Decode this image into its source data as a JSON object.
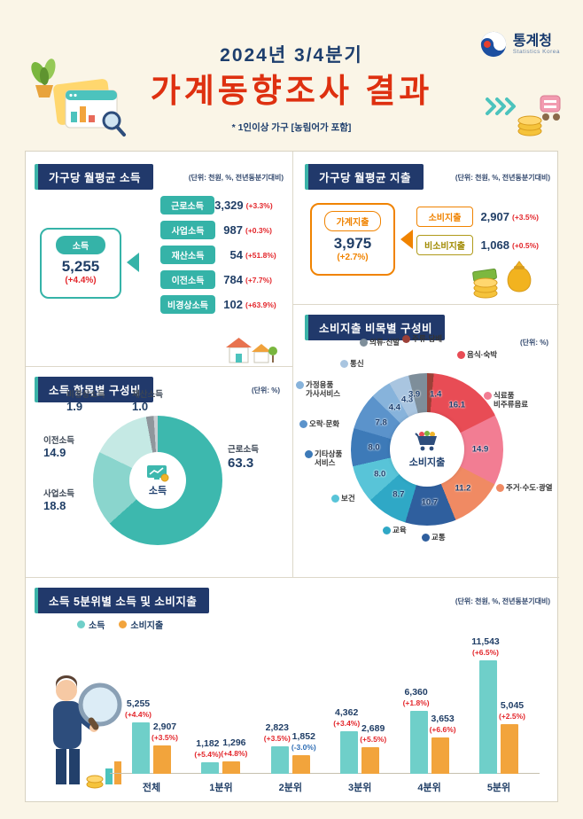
{
  "palette": {
    "navy": "#1d3e6d",
    "teal": "#35b3a8",
    "orange": "#f08300",
    "olive": "#b09a1a",
    "positive_red": "#e3262b",
    "negative_blue": "#2e6db4",
    "title_red": "#de3010",
    "background": "#faf5e7"
  },
  "logo": {
    "name": "통계청",
    "subname": "Statistics Korea"
  },
  "header": {
    "period": "2024년 3/4분기",
    "title": "가계동향조사 결과",
    "note": "* 1인이상 가구 [농림어가 포함]"
  },
  "income_section": {
    "title": "가구당 월평균 소득",
    "unit": "(단위: 천원, %, 전년동분기대비)",
    "total": {
      "label": "소득",
      "value": "5,255",
      "change": "(+4.4%)"
    },
    "rows": [
      {
        "label": "근로소득",
        "value": "3,329",
        "change": "(+3.3%)"
      },
      {
        "label": "사업소득",
        "value": "987",
        "change": "(+0.3%)"
      },
      {
        "label": "재산소득",
        "value": "54",
        "change": "(+51.8%)"
      },
      {
        "label": "이전소득",
        "value": "784",
        "change": "(+7.7%)"
      },
      {
        "label": "비경상소득",
        "value": "102",
        "change": "(+63.9%)"
      }
    ]
  },
  "expenditure_section": {
    "title": "가구당 월평균 지출",
    "unit": "(단위: 천원, %, 전년동분기대비)",
    "total": {
      "label": "가계지출",
      "value": "3,975",
      "change": "(+2.7%)"
    },
    "rows": [
      {
        "label": "소비지출",
        "value": "2,907",
        "change": "(+3.5%)"
      },
      {
        "label": "비소비지출",
        "value": "1,068",
        "change": "(+0.5%)"
      }
    ]
  },
  "income_composition": {
    "title": "소득 항목별 구성비",
    "unit": "(단위: %)",
    "center_label": "소득"
  },
  "consumption_composition": {
    "title": "소비지출 비목별 구성비",
    "unit": "(단위: %)",
    "center_label": "소비지출"
  },
  "quintile_section": {
    "title": "소득 5분위별 소득 및 소비지출",
    "unit": "(단위: 천원, %, 전년동분기대비)"
  },
  "chart_data": [
    {
      "type": "pie",
      "variant": "donut",
      "title": "소득 항목별 구성비",
      "unit": "%",
      "center_label": "소득",
      "items": [
        {
          "label": "근로소득",
          "value": 63.3,
          "display": "63.3",
          "color": "#3db8ae"
        },
        {
          "label": "사업소득",
          "value": 18.8,
          "display": "18.8",
          "color": "#8ad5cd"
        },
        {
          "label": "이전소득",
          "value": 14.9,
          "display": "14.9",
          "color": "#c5e9e4"
        },
        {
          "label": "비경상소득",
          "value": 1.9,
          "display": "1.9",
          "color": "#8f969c"
        },
        {
          "label": "재산소득",
          "value": 1.0,
          "display": "1.0",
          "color": "#c9ced3"
        }
      ]
    },
    {
      "type": "pie",
      "variant": "donut",
      "title": "소비지출 비목별 구성비",
      "unit": "%",
      "center_label": "소비지출",
      "items": [
        {
          "label": "주류·담배",
          "value": 1.4,
          "display": "1.4",
          "color": "#9c4038"
        },
        {
          "label": "음식·숙박",
          "value": 16.1,
          "display": "16.1",
          "color": "#e84c55"
        },
        {
          "label": "식료품\n비주류음료",
          "value": 14.9,
          "display": "14.9",
          "color": "#f27d93"
        },
        {
          "label": "주거·수도·광열",
          "value": 11.2,
          "display": "11.2",
          "color": "#f08a63"
        },
        {
          "label": "교통",
          "value": 10.7,
          "display": "10.7",
          "color": "#2f5f9e"
        },
        {
          "label": "교육",
          "value": 8.7,
          "display": "8.7",
          "color": "#2fa8c6"
        },
        {
          "label": "보건",
          "value": 8.0,
          "display": "8.0",
          "color": "#58c4d8"
        },
        {
          "label": "기타상품\n서비스",
          "value": 8.0,
          "display": "8.0",
          "color": "#3d7ab8"
        },
        {
          "label": "오락·문화",
          "value": 7.8,
          "display": "7.8",
          "color": "#5b93cb"
        },
        {
          "label": "가정용품\n가사서비스",
          "value": 4.4,
          "display": "4.4",
          "color": "#87b3db"
        },
        {
          "label": "통신",
          "value": 4.3,
          "display": "4.3",
          "color": "#a9c5e0"
        },
        {
          "label": "의류·신발",
          "value": 3.9,
          "display": "3.9",
          "color": "#7e8e9a"
        }
      ]
    },
    {
      "type": "bar",
      "title": "소득 5분위별 소득 및 소비지출",
      "unit": "천원, %, 전년동분기대비",
      "categories": [
        "전체",
        "1분위",
        "2분위",
        "3분위",
        "4분위",
        "5분위"
      ],
      "ymax": 11543,
      "series": [
        {
          "name": "소득",
          "color": "#6fcfc9",
          "values": [
            5255,
            1182,
            2823,
            4362,
            6360,
            11543
          ],
          "display": [
            "5,255",
            "1,182",
            "2,823",
            "4,362",
            "6,360",
            "11,543"
          ],
          "changes": [
            "(+4.4%)",
            "(+5.4%)",
            "(+3.5%)",
            "(+3.4%)",
            "(+1.8%)",
            "(+6.5%)"
          ]
        },
        {
          "name": "소비지출",
          "color": "#f2a43c",
          "values": [
            2907,
            1296,
            1852,
            2689,
            3653,
            5045
          ],
          "display": [
            "2,907",
            "1,296",
            "1,852",
            "2,689",
            "3,653",
            "5,045"
          ],
          "changes": [
            "(+3.5%)",
            "(+4.8%)",
            "(-3.0%)",
            "(+5.5%)",
            "(+6.6%)",
            "(+2.5%)"
          ]
        }
      ]
    }
  ]
}
